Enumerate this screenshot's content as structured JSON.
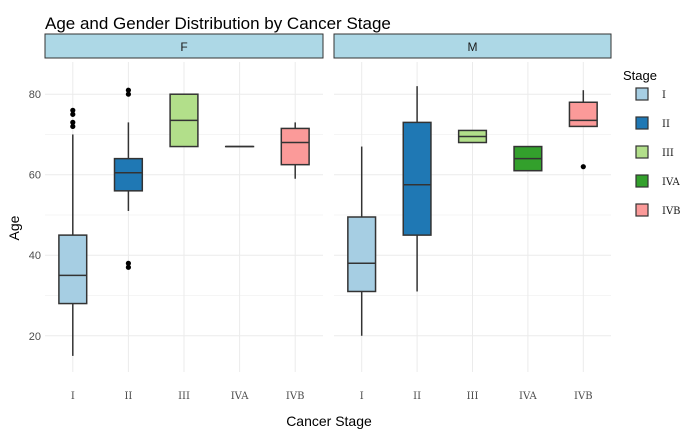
{
  "chart_data": {
    "type": "boxplot",
    "title": "Age and Gender Distribution by Cancer Stage",
    "xlabel": "Cancer Stage",
    "ylabel": "Age",
    "ylim": [
      11,
      88
    ],
    "y_ticks": [
      20,
      40,
      60,
      80
    ],
    "grid": true,
    "legend": {
      "title": "Stage",
      "position": "right",
      "entries": [
        {
          "label": "I",
          "color": "#A6CEE3"
        },
        {
          "label": "II",
          "color": "#1F78B4"
        },
        {
          "label": "III",
          "color": "#B2DF8A"
        },
        {
          "label": "IVA",
          "color": "#33A02C"
        },
        {
          "label": "IVB",
          "color": "#FB9A99"
        }
      ]
    },
    "categories": [
      "I",
      "II",
      "III",
      "IVA",
      "IVB"
    ],
    "facets": [
      {
        "label": "F",
        "boxes": [
          {
            "category": "I",
            "min": 15,
            "q1": 28,
            "median": 35,
            "q3": 45,
            "max": 70,
            "outliers": [
              72,
              73,
              75,
              76
            ]
          },
          {
            "category": "II",
            "min": 51,
            "q1": 56,
            "median": 60.5,
            "q3": 64,
            "max": 73,
            "outliers": [
              37,
              38,
              80,
              81
            ]
          },
          {
            "category": "III",
            "min": 67,
            "q1": 67,
            "median": 73.5,
            "q3": 80,
            "max": 80,
            "outliers": []
          },
          {
            "category": "IVA",
            "min": 67,
            "q1": 67,
            "median": 67,
            "q3": 67,
            "max": 67,
            "outliers": []
          },
          {
            "category": "IVB",
            "min": 59,
            "q1": 62.5,
            "median": 68,
            "q3": 71.5,
            "max": 73,
            "outliers": []
          }
        ]
      },
      {
        "label": "M",
        "boxes": [
          {
            "category": "I",
            "min": 20,
            "q1": 31,
            "median": 38,
            "q3": 49.5,
            "max": 67,
            "outliers": []
          },
          {
            "category": "II",
            "min": 31,
            "q1": 45,
            "median": 57.5,
            "q3": 73,
            "max": 82,
            "outliers": []
          },
          {
            "category": "III",
            "min": 68,
            "q1": 68,
            "median": 69.5,
            "q3": 71,
            "max": 71,
            "outliers": []
          },
          {
            "category": "IVA",
            "min": 61,
            "q1": 61,
            "median": 64,
            "q3": 67,
            "max": 67,
            "outliers": []
          },
          {
            "category": "IVB",
            "min": 72,
            "q1": 72,
            "median": 73.5,
            "q3": 78,
            "max": 81,
            "outliers": [
              62
            ]
          }
        ]
      }
    ]
  },
  "colors": {
    "strip_fill": "#ADD8E6",
    "grid": "#EBEBEB",
    "box_line": "#333333"
  }
}
